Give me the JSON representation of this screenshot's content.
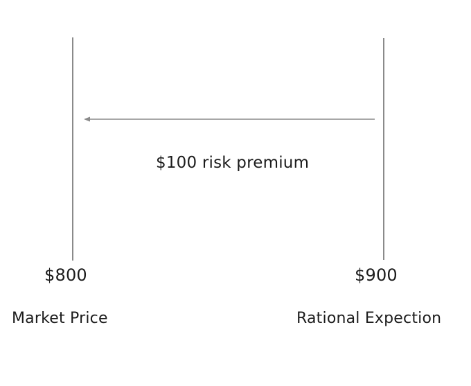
{
  "diagram": {
    "arrow_label": "$100 risk premium",
    "left": {
      "value": "$800",
      "caption": "Market Price"
    },
    "right": {
      "value": "$900",
      "caption": "Rational Expection"
    },
    "colors": {
      "lines": "#8a8a8a",
      "text": "#1c1c1c"
    }
  }
}
